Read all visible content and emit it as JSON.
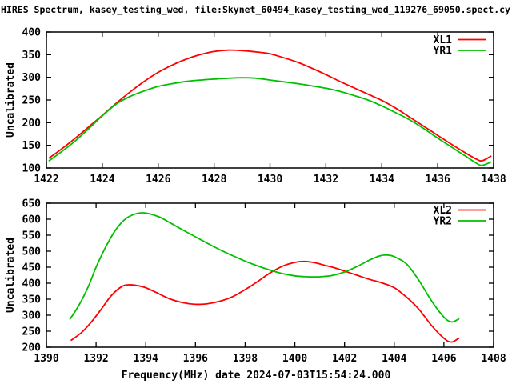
{
  "title": "HIRES Spectrum, kasey_testing_wed, file:Skynet_60494_kasey_testing_wed_119276_69050.spect.cy",
  "colors": {
    "background": "#ffffff",
    "axis": "#000000",
    "text": "#000000",
    "series_red": "#ff0000",
    "series_green": "#00c000"
  },
  "chart_data": [
    {
      "type": "line",
      "ylabel": "Uncalibrated",
      "xlabel": "",
      "xlim": [
        1422,
        1438
      ],
      "ylim": [
        100,
        400
      ],
      "xticks": [
        1422,
        1424,
        1426,
        1428,
        1430,
        1432,
        1434,
        1436,
        1438
      ],
      "yticks": [
        100,
        150,
        200,
        250,
        300,
        350,
        400
      ],
      "grid": false,
      "legend_position": "top-right-inside",
      "series": [
        {
          "name": "XL1",
          "color": "#ff0000",
          "points": [
            [
              1422.1,
              122
            ],
            [
              1422.5,
              140
            ],
            [
              1423,
              164
            ],
            [
              1423.5,
              190
            ],
            [
              1424,
              216
            ],
            [
              1424.5,
              243
            ],
            [
              1425,
              268
            ],
            [
              1425.5,
              291
            ],
            [
              1426,
              311
            ],
            [
              1426.5,
              327
            ],
            [
              1427,
              340
            ],
            [
              1427.5,
              350
            ],
            [
              1428,
              357
            ],
            [
              1428.5,
              360
            ],
            [
              1429,
              359
            ],
            [
              1429.5,
              356
            ],
            [
              1430,
              352
            ],
            [
              1430.5,
              343
            ],
            [
              1431,
              333
            ],
            [
              1431.5,
              320
            ],
            [
              1432,
              306
            ],
            [
              1432.5,
              291
            ],
            [
              1433,
              277
            ],
            [
              1433.5,
              263
            ],
            [
              1434,
              249
            ],
            [
              1434.5,
              232
            ],
            [
              1435,
              212
            ],
            [
              1435.5,
              192
            ],
            [
              1436,
              172
            ],
            [
              1436.5,
              152
            ],
            [
              1437,
              133
            ],
            [
              1437.4,
              119
            ],
            [
              1437.6,
              116
            ],
            [
              1437.9,
              126
            ]
          ]
        },
        {
          "name": "YR1",
          "color": "#00c000",
          "points": [
            [
              1422.1,
              116
            ],
            [
              1422.5,
              134
            ],
            [
              1423,
              158
            ],
            [
              1423.5,
              186
            ],
            [
              1424,
              215
            ],
            [
              1424.5,
              241
            ],
            [
              1425,
              258
            ],
            [
              1425.5,
              270
            ],
            [
              1426,
              280
            ],
            [
              1426.5,
              286
            ],
            [
              1427,
              291
            ],
            [
              1427.5,
              294
            ],
            [
              1428,
              296
            ],
            [
              1428.5,
              298
            ],
            [
              1429,
              299
            ],
            [
              1429.5,
              298
            ],
            [
              1430,
              294
            ],
            [
              1430.5,
              290
            ],
            [
              1431,
              286
            ],
            [
              1431.5,
              281
            ],
            [
              1432,
              276
            ],
            [
              1432.5,
              269
            ],
            [
              1433,
              260
            ],
            [
              1433.5,
              250
            ],
            [
              1434,
              237
            ],
            [
              1434.5,
              222
            ],
            [
              1435,
              206
            ],
            [
              1435.5,
              187
            ],
            [
              1436,
              166
            ],
            [
              1436.5,
              146
            ],
            [
              1437,
              126
            ],
            [
              1437.4,
              110
            ],
            [
              1437.6,
              106
            ],
            [
              1437.9,
              113
            ]
          ]
        }
      ]
    },
    {
      "type": "line",
      "ylabel": "Uncalibrated",
      "xlabel": "Frequency(MHz) date 2024-07-03T15:54:24.000",
      "xlim": [
        1390,
        1408
      ],
      "ylim": [
        200,
        650
      ],
      "xticks": [
        1390,
        1392,
        1394,
        1396,
        1398,
        1400,
        1402,
        1404,
        1406,
        1408
      ],
      "yticks": [
        200,
        250,
        300,
        350,
        400,
        450,
        500,
        550,
        600,
        650
      ],
      "grid": false,
      "legend_position": "top-right-inside",
      "series": [
        {
          "name": "XL2",
          "color": "#ff0000",
          "points": [
            [
              1391,
              222
            ],
            [
              1391.4,
              245
            ],
            [
              1391.8,
              278
            ],
            [
              1392.2,
              318
            ],
            [
              1392.6,
              360
            ],
            [
              1393,
              388
            ],
            [
              1393.3,
              395
            ],
            [
              1393.7,
              392
            ],
            [
              1394,
              386
            ],
            [
              1394.5,
              368
            ],
            [
              1395,
              350
            ],
            [
              1395.5,
              339
            ],
            [
              1396,
              334
            ],
            [
              1396.5,
              336
            ],
            [
              1397,
              344
            ],
            [
              1397.5,
              358
            ],
            [
              1398,
              380
            ],
            [
              1398.5,
              405
            ],
            [
              1399,
              432
            ],
            [
              1399.5,
              453
            ],
            [
              1400,
              465
            ],
            [
              1400.4,
              468
            ],
            [
              1400.8,
              464
            ],
            [
              1401.2,
              456
            ],
            [
              1401.6,
              448
            ],
            [
              1402,
              438
            ],
            [
              1402.5,
              425
            ],
            [
              1403,
              412
            ],
            [
              1403.5,
              401
            ],
            [
              1404,
              386
            ],
            [
              1404.5,
              356
            ],
            [
              1405,
              318
            ],
            [
              1405.5,
              268
            ],
            [
              1406,
              228
            ],
            [
              1406.3,
              216
            ],
            [
              1406.6,
              228
            ]
          ]
        },
        {
          "name": "YR2",
          "color": "#00c000",
          "points": [
            [
              1390.95,
              288
            ],
            [
              1391.3,
              330
            ],
            [
              1391.7,
              392
            ],
            [
              1392,
              450
            ],
            [
              1392.4,
              515
            ],
            [
              1392.8,
              568
            ],
            [
              1393.2,
              602
            ],
            [
              1393.6,
              617
            ],
            [
              1393.9,
              620
            ],
            [
              1394.2,
              616
            ],
            [
              1394.6,
              605
            ],
            [
              1395,
              588
            ],
            [
              1395.5,
              566
            ],
            [
              1396,
              545
            ],
            [
              1396.5,
              524
            ],
            [
              1397,
              504
            ],
            [
              1397.5,
              486
            ],
            [
              1398,
              469
            ],
            [
              1398.5,
              454
            ],
            [
              1399,
              441
            ],
            [
              1399.5,
              430
            ],
            [
              1400,
              423
            ],
            [
              1400.5,
              420
            ],
            [
              1401,
              420
            ],
            [
              1401.5,
              424
            ],
            [
              1402,
              435
            ],
            [
              1402.5,
              452
            ],
            [
              1403,
              472
            ],
            [
              1403.4,
              485
            ],
            [
              1403.7,
              488
            ],
            [
              1404,
              483
            ],
            [
              1404.5,
              460
            ],
            [
              1405,
              408
            ],
            [
              1405.5,
              345
            ],
            [
              1406,
              294
            ],
            [
              1406.3,
              279
            ],
            [
              1406.6,
              288
            ]
          ]
        }
      ]
    }
  ]
}
